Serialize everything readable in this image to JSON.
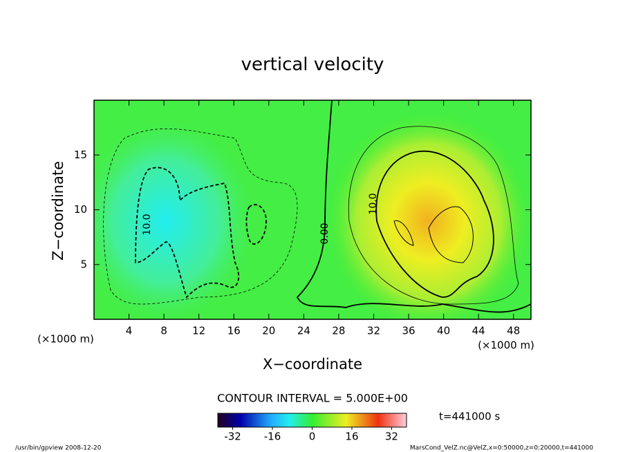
{
  "chart_data": {
    "type": "contour",
    "title": "vertical velocity",
    "xlabel": "X−coordinate",
    "ylabel": "Z−coordinate",
    "x_unit": "(×1000 m)",
    "y_unit": "(×1000 m)",
    "xlim": [
      0,
      50
    ],
    "ylim": [
      0,
      20
    ],
    "xticks": [
      4,
      8,
      12,
      16,
      20,
      24,
      28,
      32,
      36,
      40,
      44,
      48
    ],
    "yticks": [
      5,
      10,
      15
    ],
    "contour_labels": [
      "10.0",
      "0.00",
      "10.0"
    ],
    "contour_interval": "CONTOUR INTERVAL = 5.000E+00",
    "time_label": "t=441000 s",
    "colorbar_lim": [
      -38,
      38
    ],
    "colorbar_ticks": [
      -32,
      -16,
      0,
      16,
      32
    ],
    "footer_left": "/usr/bin/gpview  2008-12-20",
    "footer_right": "MarsCond_VelZ.nc@VelZ,x=0:50000,z=0:20000,t=441000"
  }
}
